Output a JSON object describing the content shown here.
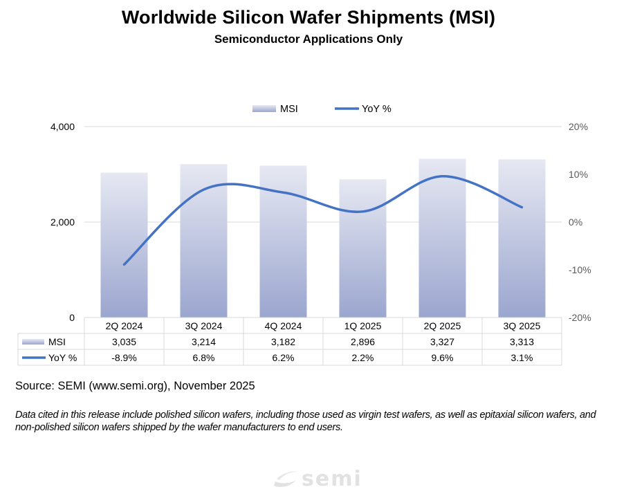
{
  "chart_data": {
    "type": "bar",
    "title": "Worldwide Silicon Wafer Shipments (MSI)",
    "subtitle": "Semiconductor Applications Only",
    "categories": [
      "2Q 2024",
      "3Q 2024",
      "4Q 2024",
      "1Q 2025",
      "2Q 2025",
      "3Q 2025"
    ],
    "series": [
      {
        "name": "MSI",
        "type": "bar",
        "axis": "left",
        "values": [
          3035,
          3214,
          3182,
          2896,
          3327,
          3313
        ],
        "labels": [
          "3,035",
          "3,214",
          "3,182",
          "2,896",
          "3,327",
          "3,313"
        ],
        "color_top": "#e6e8f2",
        "color_bottom": "#9ba6cf"
      },
      {
        "name": "YoY %",
        "type": "line",
        "axis": "right",
        "values": [
          -8.9,
          6.8,
          6.2,
          2.2,
          9.6,
          3.1
        ],
        "labels": [
          "-8.9%",
          "6.8%",
          "6.2%",
          "2.2%",
          "9.6%",
          "3.1%"
        ],
        "color": "#4472c4"
      }
    ],
    "y_left": {
      "min": 0,
      "max": 4000,
      "ticks": [
        0,
        2000,
        4000
      ],
      "tick_labels": [
        "0",
        "2,000",
        "4,000"
      ]
    },
    "y_right": {
      "min": -20,
      "max": 20,
      "ticks": [
        -20,
        -10,
        0,
        10,
        20
      ],
      "tick_labels": [
        "-20%",
        "-10%",
        "0%",
        "10%",
        "20%"
      ]
    },
    "legend_position": "top-center",
    "grid": true,
    "data_table": true
  },
  "source": "Source: SEMI (www.semi.org), November 2025",
  "note": "Data cited in this release include polished silicon wafers, including those used as virgin test wafers, as well as epitaxial silicon wafers, and non-polished silicon wafers shipped by the wafer manufacturers to end users.",
  "logo_text": "semi"
}
